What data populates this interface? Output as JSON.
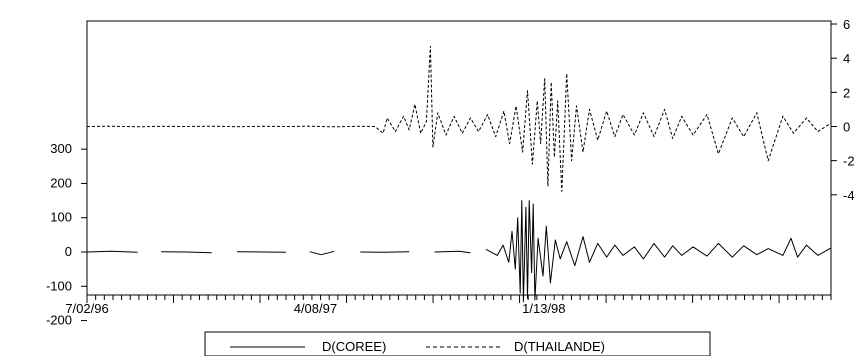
{
  "chart_data": {
    "type": "line",
    "x_start": "7/02/96",
    "x_end": "12/31/98",
    "x_tick_labels": [
      "7/02/96",
      "4/08/97",
      "1/13/98"
    ],
    "y_left": {
      "range": [
        -200,
        380
      ],
      "ticks": [
        300,
        200,
        100,
        0,
        -100,
        -200
      ],
      "tick_labels": [
        "300",
        "200",
        "100",
        "0",
        "-100",
        "-200"
      ]
    },
    "y_right": {
      "range": [
        -8,
        6
      ],
      "ticks": [
        6,
        4,
        2,
        0,
        -2,
        -4
      ],
      "tick_labels": [
        "6",
        "4",
        "2",
        "0",
        "-2",
        "-4"
      ]
    },
    "legend_position": "bottom",
    "grid": false,
    "series": [
      {
        "name": "D(COREE)",
        "axis": "left",
        "line_style": "solid",
        "color": "#000000",
        "data_gaps": true,
        "points": [
          [
            "7/02/96",
            0
          ],
          [
            "8/01/96",
            2
          ],
          [
            "9/02/96",
            -1
          ],
          [
            "10/01/96",
            1
          ],
          [
            "11/01/96",
            0
          ],
          [
            "12/02/96",
            -2
          ],
          [
            "1/02/97",
            1
          ],
          [
            "2/03/97",
            0
          ],
          [
            "3/03/97",
            -1
          ],
          [
            "4/01/97",
            1
          ],
          [
            "4/15/97",
            -8
          ],
          [
            "5/01/97",
            2
          ],
          [
            "6/02/97",
            0
          ],
          [
            "7/01/97",
            -1
          ],
          [
            "8/01/97",
            1
          ],
          [
            "9/01/97",
            0
          ],
          [
            "10/01/97",
            2
          ],
          [
            "10/15/97",
            -2
          ],
          [
            "11/03/97",
            8
          ],
          [
            "11/17/97",
            -10
          ],
          [
            "11/24/97",
            20
          ],
          [
            "12/01/97",
            -30
          ],
          [
            "12/05/97",
            60
          ],
          [
            "12/09/97",
            -50
          ],
          [
            "12/12/97",
            100
          ],
          [
            "12/15/97",
            -120
          ],
          [
            "12/17/97",
            150
          ],
          [
            "12/19/97",
            -145
          ],
          [
            "12/22/97",
            130
          ],
          [
            "12/24/97",
            -135
          ],
          [
            "12/26/97",
            150
          ],
          [
            "12/29/97",
            -60
          ],
          [
            "12/31/97",
            140
          ],
          [
            "1/02/98",
            -140
          ],
          [
            "1/06/98",
            40
          ],
          [
            "1/12/98",
            -70
          ],
          [
            "1/16/98",
            75
          ],
          [
            "1/21/98",
            -90
          ],
          [
            "1/27/98",
            35
          ],
          [
            "2/02/98",
            -20
          ],
          [
            "2/10/98",
            30
          ],
          [
            "2/20/98",
            -40
          ],
          [
            "3/02/98",
            45
          ],
          [
            "3/10/98",
            -30
          ],
          [
            "3/20/98",
            25
          ],
          [
            "3/31/98",
            -15
          ],
          [
            "4/10/98",
            20
          ],
          [
            "4/20/98",
            -10
          ],
          [
            "5/04/98",
            15
          ],
          [
            "5/15/98",
            -20
          ],
          [
            "5/28/98",
            25
          ],
          [
            "6/10/98",
            -15
          ],
          [
            "6/20/98",
            18
          ],
          [
            "7/01/98",
            -10
          ],
          [
            "7/15/98",
            15
          ],
          [
            "8/01/98",
            -12
          ],
          [
            "8/15/98",
            25
          ],
          [
            "9/01/98",
            -15
          ],
          [
            "9/15/98",
            18
          ],
          [
            "10/01/98",
            -8
          ],
          [
            "10/15/98",
            10
          ],
          [
            "11/02/98",
            -10
          ],
          [
            "11/12/98",
            40
          ],
          [
            "11/20/98",
            -15
          ],
          [
            "12/01/98",
            20
          ],
          [
            "12/15/98",
            -10
          ],
          [
            "12/31/98",
            12
          ]
        ]
      },
      {
        "name": "D(THAILANDE)",
        "axis": "right",
        "line_style": "dashed",
        "color": "#000000",
        "points": [
          [
            "7/02/96",
            0
          ],
          [
            "8/01/96",
            0.02
          ],
          [
            "9/02/96",
            -0.02
          ],
          [
            "10/01/96",
            0.01
          ],
          [
            "11/01/96",
            0
          ],
          [
            "12/02/96",
            0.02
          ],
          [
            "1/02/97",
            -0.01
          ],
          [
            "2/03/97",
            0.01
          ],
          [
            "3/03/97",
            0
          ],
          [
            "4/01/97",
            0.02
          ],
          [
            "5/01/97",
            -0.02
          ],
          [
            "6/02/97",
            0.01
          ],
          [
            "6/20/97",
            0
          ],
          [
            "6/30/97",
            -0.4
          ],
          [
            "7/05/97",
            0.5
          ],
          [
            "7/15/97",
            -0.3
          ],
          [
            "7/25/97",
            0.6
          ],
          [
            "8/01/97",
            -0.2
          ],
          [
            "8/08/97",
            1.3
          ],
          [
            "8/15/97",
            -0.4
          ],
          [
            "8/22/97",
            0.3
          ],
          [
            "8/27/97",
            4.7
          ],
          [
            "8/30/97",
            -1.2
          ],
          [
            "9/05/97",
            0.8
          ],
          [
            "9/15/97",
            -0.5
          ],
          [
            "9/25/97",
            0.6
          ],
          [
            "10/05/97",
            -0.4
          ],
          [
            "10/15/97",
            0.5
          ],
          [
            "10/25/97",
            -0.3
          ],
          [
            "11/05/97",
            0.7
          ],
          [
            "11/15/97",
            -0.6
          ],
          [
            "11/25/97",
            0.9
          ],
          [
            "12/02/97",
            -1.0
          ],
          [
            "12/10/97",
            1.2
          ],
          [
            "12/18/97",
            -1.5
          ],
          [
            "12/24/97",
            2.1
          ],
          [
            "12/30/97",
            -2.2
          ],
          [
            "1/05/98",
            1.5
          ],
          [
            "1/09/98",
            -1.0
          ],
          [
            "1/14/98",
            2.8
          ],
          [
            "1/18/98",
            -3.5
          ],
          [
            "1/22/98",
            2.6
          ],
          [
            "1/26/98",
            -1.8
          ],
          [
            "1/30/98",
            1.5
          ],
          [
            "2/04/98",
            -3.8
          ],
          [
            "2/10/98",
            3.1
          ],
          [
            "2/16/98",
            -2.0
          ],
          [
            "2/22/98",
            1.2
          ],
          [
            "3/02/98",
            -1.5
          ],
          [
            "3/10/98",
            1.0
          ],
          [
            "3/20/98",
            -0.8
          ],
          [
            "3/31/98",
            0.9
          ],
          [
            "4/10/98",
            -0.6
          ],
          [
            "4/20/98",
            0.7
          ],
          [
            "5/04/98",
            -0.5
          ],
          [
            "5/15/98",
            0.8
          ],
          [
            "5/28/98",
            -0.6
          ],
          [
            "6/10/98",
            1.0
          ],
          [
            "6/20/98",
            -0.7
          ],
          [
            "7/01/98",
            0.6
          ],
          [
            "7/15/98",
            -0.5
          ],
          [
            "8/01/98",
            0.7
          ],
          [
            "8/15/98",
            -1.6
          ],
          [
            "9/01/98",
            0.5
          ],
          [
            "9/15/98",
            -0.6
          ],
          [
            "10/01/98",
            0.8
          ],
          [
            "10/15/98",
            -2.0
          ],
          [
            "11/02/98",
            0.6
          ],
          [
            "11/15/98",
            -0.4
          ],
          [
            "12/01/98",
            0.5
          ],
          [
            "12/15/98",
            -0.3
          ],
          [
            "12/31/98",
            0.2
          ]
        ]
      }
    ]
  }
}
